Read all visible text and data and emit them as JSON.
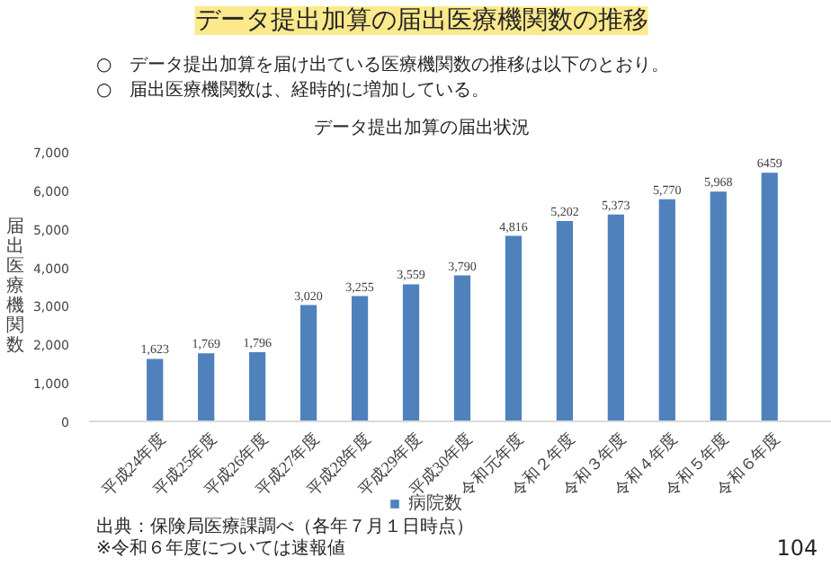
{
  "chart_data": {
    "type": "bar",
    "title": "データ提出加算の届出医療機関数の推移",
    "subtitle": "データ提出加算の届出状況",
    "ylabel": "届出医療機関数",
    "categories": [
      "平成24年度",
      "平成25年度",
      "平成26年度",
      "平成27年度",
      "平成28年度",
      "平成29年度",
      "平成30年度",
      "令和元年度",
      "令和２年度",
      "令和３年度",
      "令和４年度",
      "令和５年度",
      "令和６年度"
    ],
    "series": [
      {
        "name": "病院数",
        "color": "#4f81bd",
        "values": [
          1623,
          1769,
          1796,
          3020,
          3255,
          3559,
          3790,
          4816,
          5202,
          5373,
          5770,
          5968,
          6459
        ],
        "value_labels": [
          "1,623",
          "1,769",
          "1,796",
          "3,020",
          "3,255",
          "3,559",
          "3,790",
          "4,816",
          "5,202",
          "5,373",
          "5,770",
          "5,968",
          "6459"
        ]
      }
    ],
    "ylim": [
      0,
      7000
    ],
    "yticks": [
      0,
      {
        "value": 1000,
        "label": "1,000"
      },
      {
        "value": 2000,
        "label": "2,000"
      },
      {
        "value": 3000,
        "label": "3,000"
      },
      {
        "value": 4000,
        "label": "4,000"
      },
      {
        "value": 5000,
        "label": "5,000"
      },
      {
        "value": 6000,
        "label": "6,000"
      },
      {
        "value": 7000,
        "label": "7,000"
      }
    ],
    "legend": "bottom",
    "annotations": [
      "○　データ提出加算を届け出ている医療機関数の推移は以下のとおり。",
      "○　届出医療機関数は、経時的に増加している。",
      "出典：保険局医療課調べ（各年７月１日時点）",
      "※令和６年度については速報値",
      "104"
    ]
  }
}
